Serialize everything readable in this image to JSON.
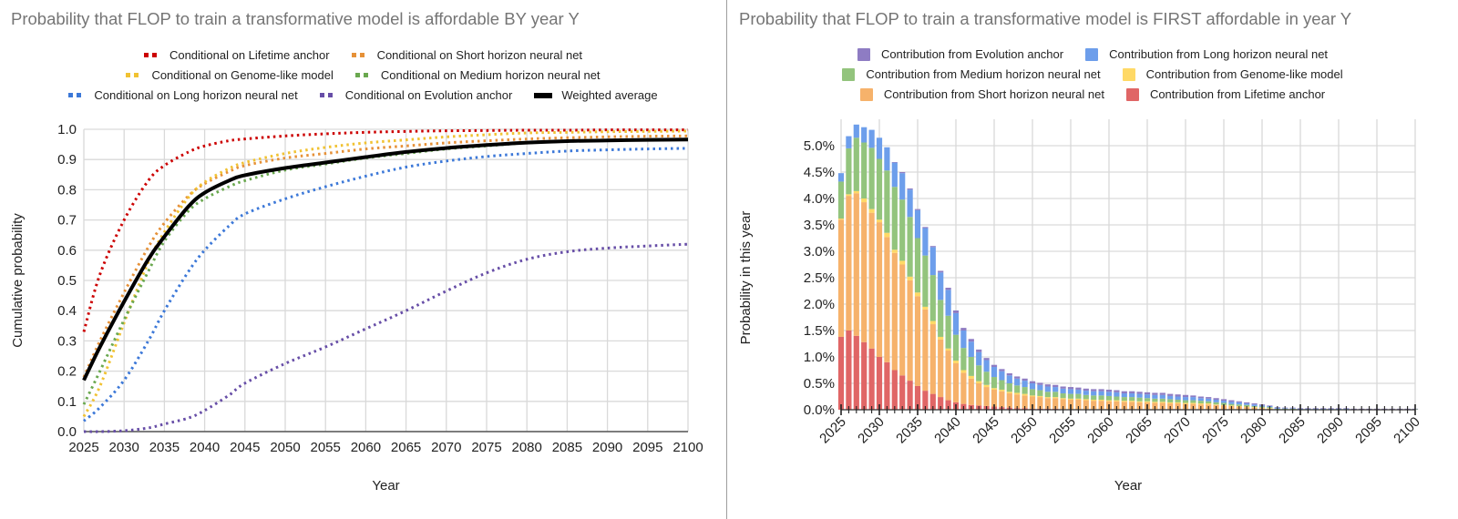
{
  "chart_data": [
    {
      "type": "line",
      "title": "Probability that FLOP to train a transformative model is affordable BY year Y",
      "xlabel": "Year",
      "ylabel": "Cumulative probability",
      "xlim": [
        2025,
        2100
      ],
      "ylim": [
        0,
        1
      ],
      "grid": true,
      "legend_position": "top",
      "x_ticks": [
        "2025",
        "2030",
        "2035",
        "2040",
        "2045",
        "2050",
        "2055",
        "2060",
        "2065",
        "2070",
        "2075",
        "2080",
        "2085",
        "2090",
        "2095",
        "2100"
      ],
      "y_ticks": [
        "0.0",
        "0.1",
        "0.2",
        "0.3",
        "0.4",
        "0.5",
        "0.6",
        "0.7",
        "0.8",
        "0.9",
        "1.0"
      ],
      "x": [
        2025,
        2027,
        2030,
        2033,
        2035,
        2038,
        2040,
        2043,
        2045,
        2050,
        2055,
        2060,
        2065,
        2070,
        2075,
        2080,
        2085,
        2090,
        2095,
        2100
      ],
      "series": [
        {
          "name": "Conditional on Lifetime anchor",
          "color": "#cc0000",
          "style": "dotted",
          "values": [
            0.33,
            0.52,
            0.7,
            0.83,
            0.88,
            0.925,
            0.945,
            0.962,
            0.968,
            0.978,
            0.985,
            0.99,
            0.993,
            0.995,
            0.996,
            0.997,
            0.997,
            0.998,
            0.998,
            0.998
          ]
        },
        {
          "name": "Conditional on Short horizon neural net",
          "color": "#e69138",
          "style": "dotted",
          "values": [
            0.18,
            0.3,
            0.46,
            0.61,
            0.69,
            0.78,
            0.82,
            0.86,
            0.88,
            0.905,
            0.92,
            0.935,
            0.945,
            0.955,
            0.962,
            0.968,
            0.972,
            0.975,
            0.977,
            0.978
          ]
        },
        {
          "name": "Conditional on Genome-like model",
          "color": "#f1c232",
          "style": "dotted",
          "values": [
            0.05,
            0.15,
            0.36,
            0.56,
            0.66,
            0.775,
            0.825,
            0.87,
            0.89,
            0.92,
            0.94,
            0.955,
            0.965,
            0.975,
            0.982,
            0.988,
            0.99,
            0.992,
            0.993,
            0.994
          ]
        },
        {
          "name": "Conditional on Medium horizon neural net",
          "color": "#6aa84f",
          "style": "dotted",
          "values": [
            0.09,
            0.2,
            0.37,
            0.53,
            0.63,
            0.73,
            0.77,
            0.81,
            0.83,
            0.865,
            0.885,
            0.905,
            0.92,
            0.935,
            0.945,
            0.955,
            0.96,
            0.963,
            0.965,
            0.966
          ]
        },
        {
          "name": "Conditional on Long horizon neural net",
          "color": "#3c78d8",
          "style": "dotted",
          "values": [
            0.035,
            0.08,
            0.17,
            0.3,
            0.4,
            0.53,
            0.6,
            0.68,
            0.72,
            0.77,
            0.81,
            0.845,
            0.875,
            0.895,
            0.91,
            0.92,
            0.928,
            0.932,
            0.935,
            0.937
          ]
        },
        {
          "name": "Conditional on Evolution anchor",
          "color": "#674ea7",
          "style": "dotted",
          "values": [
            0,
            0,
            0.003,
            0.012,
            0.025,
            0.045,
            0.07,
            0.12,
            0.16,
            0.225,
            0.28,
            0.34,
            0.4,
            0.465,
            0.525,
            0.57,
            0.595,
            0.607,
            0.614,
            0.62
          ]
        },
        {
          "name": "Weighted average",
          "color": "#000000",
          "style": "solid",
          "values": [
            0.17,
            0.28,
            0.43,
            0.57,
            0.645,
            0.745,
            0.79,
            0.83,
            0.848,
            0.872,
            0.89,
            0.908,
            0.925,
            0.938,
            0.948,
            0.956,
            0.961,
            0.963,
            0.965,
            0.966
          ]
        }
      ]
    },
    {
      "type": "bar",
      "stacked": true,
      "title": "Probability that FLOP to train a transformative model is FIRST affordable in year Y",
      "xlabel": "Year",
      "ylabel": "Probability in this year",
      "ylim": [
        0,
        5.5
      ],
      "unit": "%",
      "grid": true,
      "legend_position": "top",
      "x_ticks": [
        "2025",
        "2030",
        "2035",
        "2040",
        "2045",
        "2050",
        "2055",
        "2060",
        "2065",
        "2070",
        "2075",
        "2080",
        "2085",
        "2090",
        "2095",
        "2100"
      ],
      "y_ticks": [
        "0.0%",
        "0.5%",
        "1.0%",
        "1.5%",
        "2.0%",
        "2.5%",
        "3.0%",
        "3.5%",
        "4.0%",
        "4.5%",
        "5.0%"
      ],
      "categories_start": 2025,
      "categories_end": 2100,
      "series": [
        {
          "name": "Contribution from Lifetime anchor",
          "color": "#e06666",
          "values": [
            1.38,
            1.5,
            1.4,
            1.28,
            1.16,
            1.0,
            0.9,
            0.75,
            0.65,
            0.55,
            0.45,
            0.36,
            0.3,
            0.24,
            0.18,
            0.14,
            0.11,
            0.09,
            0.08,
            0.07,
            0.06,
            0.05,
            0.04,
            0.03,
            0.03,
            0.02,
            0.02,
            0.02,
            0.02,
            0.01,
            0.01,
            0.01,
            0.01,
            0.01,
            0.01,
            0.01,
            0.01,
            0.01,
            0.01,
            0.01,
            0.01,
            0.01,
            0.01,
            0.01,
            0.01,
            0.01,
            0.01,
            0.01,
            0.01,
            0.01,
            0,
            0,
            0,
            0,
            0,
            0,
            0,
            0,
            0,
            0,
            0,
            0,
            0,
            0,
            0,
            0,
            0,
            0,
            0,
            0,
            0,
            0,
            0,
            0,
            0,
            0
          ]
        },
        {
          "name": "Contribution from Short horizon neural net",
          "color": "#f6b26b",
          "values": [
            2.22,
            2.55,
            2.7,
            2.65,
            2.57,
            2.55,
            2.37,
            2.22,
            2.1,
            1.9,
            1.7,
            1.54,
            1.32,
            1.09,
            0.94,
            0.74,
            0.59,
            0.5,
            0.42,
            0.36,
            0.32,
            0.3,
            0.27,
            0.26,
            0.24,
            0.23,
            0.22,
            0.2,
            0.2,
            0.19,
            0.18,
            0.18,
            0.17,
            0.16,
            0.16,
            0.15,
            0.15,
            0.14,
            0.14,
            0.13,
            0.13,
            0.12,
            0.12,
            0.11,
            0.11,
            0.1,
            0.1,
            0.09,
            0.09,
            0.08,
            0.08,
            0.07,
            0.06,
            0.05,
            0.04,
            0.03,
            0.02,
            0.01,
            0.01,
            0.01,
            0,
            0,
            0,
            0,
            0,
            0,
            0,
            0,
            0,
            0,
            0,
            0,
            0,
            0,
            0,
            0
          ]
        },
        {
          "name": "Contribution from Genome-like model",
          "color": "#ffd966",
          "values": [
            0.02,
            0.03,
            0.04,
            0.07,
            0.07,
            0.05,
            0.08,
            0.06,
            0.07,
            0.07,
            0.07,
            0.05,
            0.06,
            0.05,
            0.04,
            0.05,
            0.05,
            0.05,
            0.04,
            0.04,
            0.03,
            0.03,
            0.03,
            0.03,
            0.03,
            0.02,
            0.02,
            0.02,
            0.02,
            0.02,
            0.02,
            0.02,
            0.02,
            0.02,
            0.02,
            0.02,
            0.02,
            0.02,
            0.02,
            0.02,
            0.02,
            0.02,
            0.02,
            0.02,
            0.02,
            0.02,
            0.02,
            0.02,
            0.02,
            0.01,
            0.01,
            0.01,
            0.01,
            0.01,
            0.01,
            0.01,
            0.01,
            0,
            0,
            0,
            0,
            0,
            0,
            0,
            0,
            0,
            0,
            0,
            0,
            0,
            0,
            0,
            0,
            0,
            0,
            0
          ]
        },
        {
          "name": "Contribution from Medium horizon neural net",
          "color": "#93c47d",
          "values": [
            0.7,
            0.87,
            1.01,
            1.06,
            1.16,
            1.15,
            1.18,
            1.19,
            1.16,
            1.13,
            1.03,
            0.97,
            0.87,
            0.7,
            0.62,
            0.49,
            0.42,
            0.36,
            0.3,
            0.25,
            0.21,
            0.18,
            0.16,
            0.14,
            0.13,
            0.12,
            0.11,
            0.1,
            0.1,
            0.09,
            0.09,
            0.09,
            0.08,
            0.08,
            0.08,
            0.08,
            0.07,
            0.07,
            0.07,
            0.07,
            0.06,
            0.06,
            0.06,
            0.06,
            0.05,
            0.05,
            0.05,
            0.05,
            0.04,
            0.04,
            0.04,
            0.03,
            0.03,
            0.03,
            0.02,
            0.02,
            0.02,
            0.01,
            0.01,
            0.01,
            0.01,
            0.01,
            0.01,
            0.01,
            0.01,
            0.01,
            0.01,
            0.01,
            0.01,
            0.01,
            0.01,
            0.01,
            0.01,
            0.01,
            0.01,
            0.01
          ]
        },
        {
          "name": "Contribution from Long horizon neural net",
          "color": "#6d9eeb",
          "values": [
            0.16,
            0.23,
            0.25,
            0.29,
            0.34,
            0.4,
            0.44,
            0.46,
            0.5,
            0.52,
            0.53,
            0.52,
            0.53,
            0.52,
            0.49,
            0.41,
            0.33,
            0.29,
            0.25,
            0.22,
            0.19,
            0.17,
            0.15,
            0.13,
            0.12,
            0.11,
            0.1,
            0.1,
            0.09,
            0.09,
            0.09,
            0.08,
            0.08,
            0.08,
            0.08,
            0.08,
            0.08,
            0.07,
            0.07,
            0.07,
            0.07,
            0.07,
            0.07,
            0.06,
            0.06,
            0.06,
            0.06,
            0.05,
            0.05,
            0.05,
            0.04,
            0.04,
            0.04,
            0.03,
            0.03,
            0.02,
            0.02,
            0.02,
            0.01,
            0.01,
            0.01,
            0.01,
            0.01,
            0.01,
            0.01,
            0.01,
            0.01,
            0,
            0,
            0,
            0,
            0,
            0,
            0,
            0,
            0
          ]
        },
        {
          "name": "Contribution from Evolution anchor",
          "color": "#8e7cc3",
          "values": [
            0,
            0,
            0,
            0,
            0,
            0,
            0,
            0.01,
            0.02,
            0.02,
            0.02,
            0.02,
            0.02,
            0.03,
            0.04,
            0.05,
            0.05,
            0.05,
            0.05,
            0.04,
            0.04,
            0.04,
            0.04,
            0.04,
            0.04,
            0.04,
            0.04,
            0.04,
            0.04,
            0.04,
            0.04,
            0.04,
            0.04,
            0.04,
            0.04,
            0.04,
            0.04,
            0.04,
            0.04,
            0.04,
            0.04,
            0.04,
            0.04,
            0.04,
            0.04,
            0.04,
            0.03,
            0.03,
            0.03,
            0.03,
            0.03,
            0.03,
            0.02,
            0.02,
            0.02,
            0.02,
            0.01,
            0.01,
            0.01,
            0.01,
            0.01,
            0.01,
            0.01,
            0.01,
            0.01,
            0.01,
            0.01,
            0.01,
            0.01,
            0.01,
            0.01,
            0.01,
            0.01,
            0.01,
            0.01,
            0.01
          ]
        }
      ]
    }
  ],
  "left_legend_rows": [
    [
      0,
      1
    ],
    [
      2,
      3
    ],
    [
      4,
      5,
      6
    ]
  ],
  "right_legend_rows": [
    [
      5,
      4
    ],
    [
      3,
      2
    ],
    [
      1,
      0
    ]
  ]
}
